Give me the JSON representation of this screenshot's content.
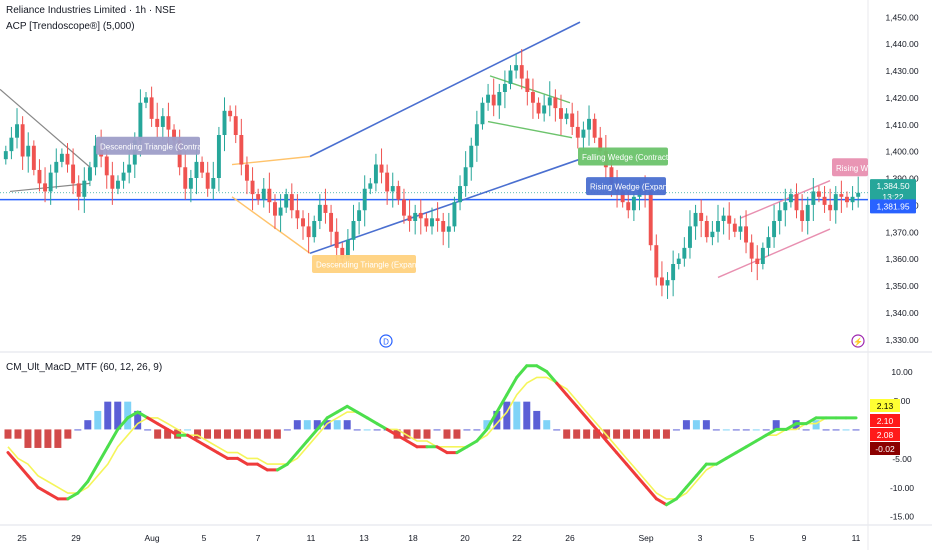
{
  "header": {
    "title": "Reliance Industries Limited · 1h · NSE",
    "indicator": "ACP [Trendoscope®] (5,000)"
  },
  "macd": {
    "title": "CM_Ult_MacD_MTF (60, 12, 26, 9)"
  },
  "markers": {
    "dividend": "D",
    "flash": "⚡"
  },
  "colors": {
    "up": "#26a69a",
    "down": "#ef5350",
    "price_line": "#2962ff",
    "macd_line_green": "#4cdf4c",
    "macd_line_red": "#ef3b3b",
    "signal_line": "#f5f55a",
    "hist_blue": "#5b5fd6",
    "hist_light": "#7fd3f7",
    "hist_red": "#d24a4a"
  },
  "chart_data": [
    {
      "type": "candlestick",
      "price_axis": {
        "ticks": [
          1330,
          1340,
          1350,
          1360,
          1370,
          1380,
          1390,
          1400,
          1410,
          1420,
          1430,
          1440,
          1450
        ],
        "tick_labels": [
          "1,330.00",
          "1,340.00",
          "1,350.00",
          "1,360.00",
          "1,370.00",
          "1,380.00",
          "1,390.00",
          "1,400.00",
          "1,410.00",
          "1,420.00",
          "1,430.00",
          "1,440.00",
          "1,450.00"
        ],
        "range": [
          1326,
          1454
        ]
      },
      "current_price": {
        "value": 1384.5,
        "label": "1,384.50",
        "countdown": "13:22"
      },
      "horizontal_line": {
        "value": 1381.95,
        "label": "1,381.95"
      },
      "patterns": [
        {
          "label": "Descending Triangle (Contracting)",
          "color": "#9e9ec8",
          "at": 1402
        },
        {
          "label": "Descending Triangle (Expanding)",
          "color": "#ffd27f",
          "at": 1358
        },
        {
          "label": "Falling Wedge (Contracting)",
          "color": "#6cc36c",
          "at": 1398
        },
        {
          "label": "Rising Wedge (Expanding)",
          "color": "#4a6fd0",
          "at": 1387
        },
        {
          "label": "Rising Wedge (Contracting)",
          "color": "#e88fb0",
          "at": 1394
        }
      ],
      "trendlines": [
        {
          "name": "grey-down",
          "color": "#888888",
          "points": [
            [
              1422,
              "start"
            ],
            [
              1386,
              "end"
            ]
          ]
        },
        {
          "name": "blue-channel-upper",
          "color": "#4a6fd0"
        },
        {
          "name": "blue-channel-lower",
          "color": "#4a6fd0"
        },
        {
          "name": "green-wedge",
          "color": "#6cc36c"
        },
        {
          "name": "orange-triangle",
          "color": "#ffc36b"
        },
        {
          "name": "pink-wedge",
          "color": "#e88fb0"
        }
      ],
      "closes": [
        1400,
        1405,
        1410,
        1398,
        1402,
        1393,
        1388,
        1385,
        1392,
        1396,
        1399,
        1395,
        1388,
        1383,
        1389,
        1394,
        1402,
        1398,
        1391,
        1386,
        1389,
        1392,
        1395,
        1404,
        1418,
        1420,
        1412,
        1409,
        1413,
        1408,
        1404,
        1394,
        1386,
        1390,
        1396,
        1392,
        1386,
        1390,
        1406,
        1415,
        1413,
        1406,
        1395,
        1389,
        1384,
        1382,
        1386,
        1381,
        1376,
        1379,
        1384,
        1378,
        1375,
        1372,
        1368,
        1374,
        1380,
        1377,
        1370,
        1364,
        1360,
        1367,
        1374,
        1378,
        1386,
        1388,
        1395,
        1392,
        1385,
        1387,
        1382,
        1376,
        1374,
        1377,
        1375,
        1372,
        1375,
        1374,
        1370,
        1372,
        1381,
        1387,
        1394,
        1402,
        1410,
        1418,
        1421,
        1417,
        1422,
        1425,
        1430,
        1432,
        1427,
        1422,
        1418,
        1414,
        1417,
        1420,
        1416,
        1412,
        1414,
        1409,
        1405,
        1408,
        1412,
        1405,
        1400,
        1394,
        1388,
        1385,
        1381,
        1378,
        1383,
        1386,
        1385,
        1365,
        1353,
        1350,
        1352,
        1358,
        1360,
        1364,
        1372,
        1377,
        1374,
        1368,
        1370,
        1374,
        1376,
        1373,
        1370,
        1372,
        1366,
        1360,
        1358,
        1364,
        1368,
        1374,
        1378,
        1381,
        1384,
        1378,
        1374,
        1380,
        1385,
        1383,
        1380,
        1378,
        1384,
        1383,
        1381,
        1383,
        1384.5
      ],
      "x_axis": {
        "labels": [
          "25",
          "29",
          "Aug",
          "5",
          "7",
          "11",
          "13",
          "18",
          "20",
          "22",
          "26",
          "Sep",
          "3",
          "5",
          "9",
          "11"
        ]
      }
    },
    {
      "type": "line",
      "name": "macd",
      "y_axis": {
        "ticks": [
          10,
          5,
          0,
          -5,
          -10,
          -15
        ],
        "tick_labels": [
          "10.00",
          "5.00",
          "",
          "-5.00",
          "-10.00",
          "-15.00"
        ],
        "range": [
          -16,
          12
        ]
      },
      "value_labels": [
        {
          "label": "2.13",
          "bg": "#ffff33",
          "fg": "#000000"
        },
        {
          "label": "2.10",
          "bg": "#ff1a1a",
          "fg": "#ffffff"
        },
        {
          "label": "2.08",
          "bg": "#ff1a1a",
          "fg": "#ffffff"
        },
        {
          "label": "-0.02",
          "bg": "#8b0000",
          "fg": "#ffffff"
        }
      ],
      "macd_values": [
        -4,
        -6,
        -8,
        -10,
        -11,
        -12,
        -12,
        -11,
        -9,
        -6,
        -3,
        0,
        2,
        3,
        2,
        1,
        0,
        -1,
        -1,
        -2,
        -3,
        -4,
        -5,
        -5,
        -6,
        -6,
        -7,
        -7,
        -6,
        -4,
        -2,
        0,
        2,
        3,
        4,
        3,
        2,
        1,
        0,
        -1,
        -2,
        -3,
        -3,
        -3,
        -4,
        -4,
        -3,
        -2,
        0,
        3,
        6,
        9,
        11,
        11,
        10,
        8,
        6,
        4,
        2,
        0,
        -2,
        -4,
        -6,
        -8,
        -10,
        -12,
        -13,
        -12,
        -10,
        -8,
        -6,
        -6,
        -5,
        -4,
        -3,
        -2,
        -1,
        0,
        0,
        1,
        1,
        2,
        2,
        2,
        2,
        2
      ],
      "signal_values": [
        -3,
        -5,
        -6,
        -8,
        -9,
        -10,
        -11,
        -11,
        -10,
        -8,
        -6,
        -3,
        -1,
        1,
        2,
        2,
        1,
        0,
        -1,
        -1,
        -2,
        -3,
        -4,
        -4,
        -5,
        -5,
        -6,
        -6,
        -6,
        -5,
        -3,
        -1,
        1,
        2,
        3,
        3,
        2,
        1,
        0,
        0,
        -1,
        -2,
        -2,
        -3,
        -3,
        -3,
        -3,
        -2,
        -1,
        1,
        3,
        6,
        8,
        9,
        9,
        8,
        7,
        5,
        3,
        1,
        -1,
        -3,
        -5,
        -7,
        -9,
        -11,
        -12,
        -12,
        -11,
        -9,
        -7,
        -6,
        -5,
        -4,
        -3,
        -2,
        -1,
        -1,
        0,
        0,
        1,
        1,
        2,
        2,
        2,
        2
      ]
    }
  ]
}
